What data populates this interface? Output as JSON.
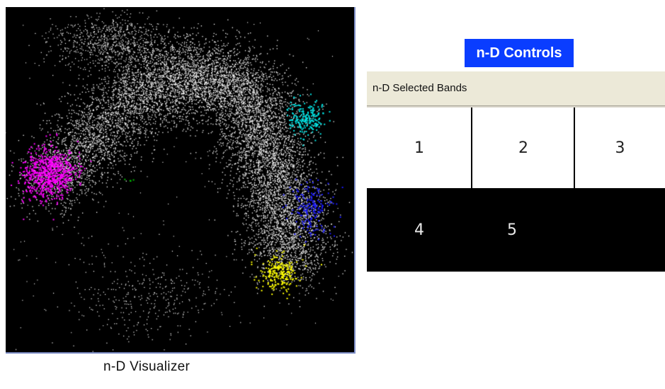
{
  "visualizer": {
    "caption": "n-D Visualizer",
    "colors": {
      "background": "#000000",
      "points": "#ffffff",
      "magenta": "#ff00ff",
      "cyan": "#00e5e5",
      "blue": "#1a1aff",
      "yellow": "#ffff00",
      "green": "#00c000"
    }
  },
  "controls": {
    "title": "n-D Controls",
    "selected_bands_label": "n-D Selected Bands",
    "bands_row1": [
      "1",
      "2",
      "3"
    ],
    "bands_row2": [
      "4",
      "5"
    ],
    "title_bg": "#0a3dff"
  }
}
